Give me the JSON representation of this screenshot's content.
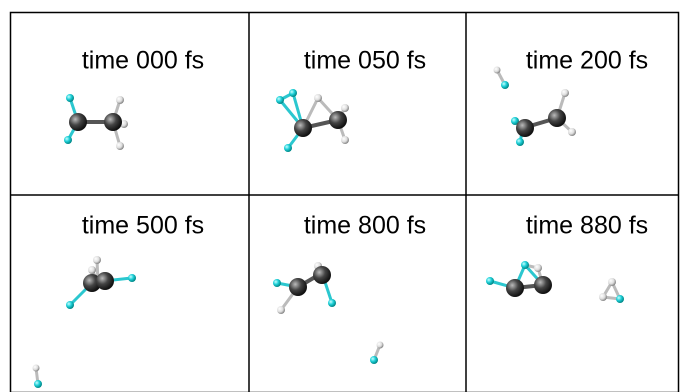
{
  "panels": [
    {
      "label": "time 000 fs"
    },
    {
      "label": "time 050 fs"
    },
    {
      "label": "time 200 fs"
    },
    {
      "label": "time 500 fs"
    },
    {
      "label": "time 800 fs"
    },
    {
      "label": "time 880 fs"
    }
  ]
}
